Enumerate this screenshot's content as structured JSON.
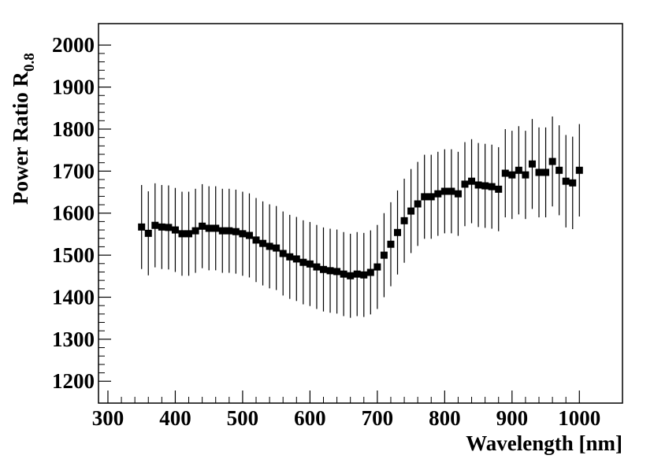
{
  "chart_data": {
    "type": "scatter",
    "x_label": "Wavelength [nm]",
    "y_label": "Power Ratio R",
    "y_label_subscript": "0.8",
    "xlim": [
      286,
      1064
    ],
    "ylim": [
      1148,
      2051
    ],
    "xticks": [
      300,
      400,
      500,
      600,
      700,
      800,
      900,
      1000
    ],
    "yticks": [
      1200,
      1300,
      1400,
      1500,
      1600,
      1700,
      1800,
      1900,
      2000
    ],
    "color": "#000000",
    "x": [
      350,
      360,
      370,
      380,
      390,
      400,
      410,
      420,
      430,
      440,
      450,
      460,
      470,
      480,
      490,
      500,
      510,
      520,
      530,
      540,
      550,
      560,
      570,
      580,
      590,
      600,
      610,
      620,
      630,
      640,
      650,
      660,
      670,
      680,
      690,
      700,
      710,
      720,
      730,
      740,
      750,
      760,
      770,
      780,
      790,
      800,
      810,
      820,
      830,
      840,
      850,
      860,
      870,
      880,
      890,
      900,
      910,
      920,
      930,
      940,
      950,
      960,
      970,
      980,
      990,
      1000
    ],
    "values": [
      1567,
      1552,
      1571,
      1567,
      1566,
      1560,
      1551,
      1551,
      1558,
      1569,
      1564,
      1564,
      1558,
      1558,
      1556,
      1551,
      1547,
      1536,
      1528,
      1521,
      1517,
      1504,
      1496,
      1491,
      1483,
      1479,
      1472,
      1466,
      1463,
      1461,
      1455,
      1451,
      1455,
      1453,
      1459,
      1472,
      1500,
      1526,
      1554,
      1582,
      1605,
      1622,
      1639,
      1639,
      1646,
      1652,
      1652,
      1646,
      1669,
      1676,
      1667,
      1665,
      1663,
      1657,
      1695,
      1691,
      1702,
      1691,
      1717,
      1697,
      1697,
      1723,
      1702,
      1676,
      1672,
      1702
    ],
    "errors": [
      100,
      100,
      100,
      100,
      100,
      100,
      100,
      100,
      100,
      100,
      100,
      100,
      100,
      100,
      100,
      100,
      100,
      100,
      100,
      100,
      100,
      100,
      100,
      100,
      100,
      100,
      100,
      100,
      100,
      100,
      100,
      100,
      100,
      100,
      100,
      100,
      100,
      100,
      100,
      100,
      100,
      100,
      100,
      100,
      100,
      100,
      100,
      100,
      100,
      100,
      100,
      100,
      100,
      100,
      105,
      105,
      105,
      105,
      107,
      107,
      107,
      107,
      107,
      110,
      110,
      110
    ]
  }
}
